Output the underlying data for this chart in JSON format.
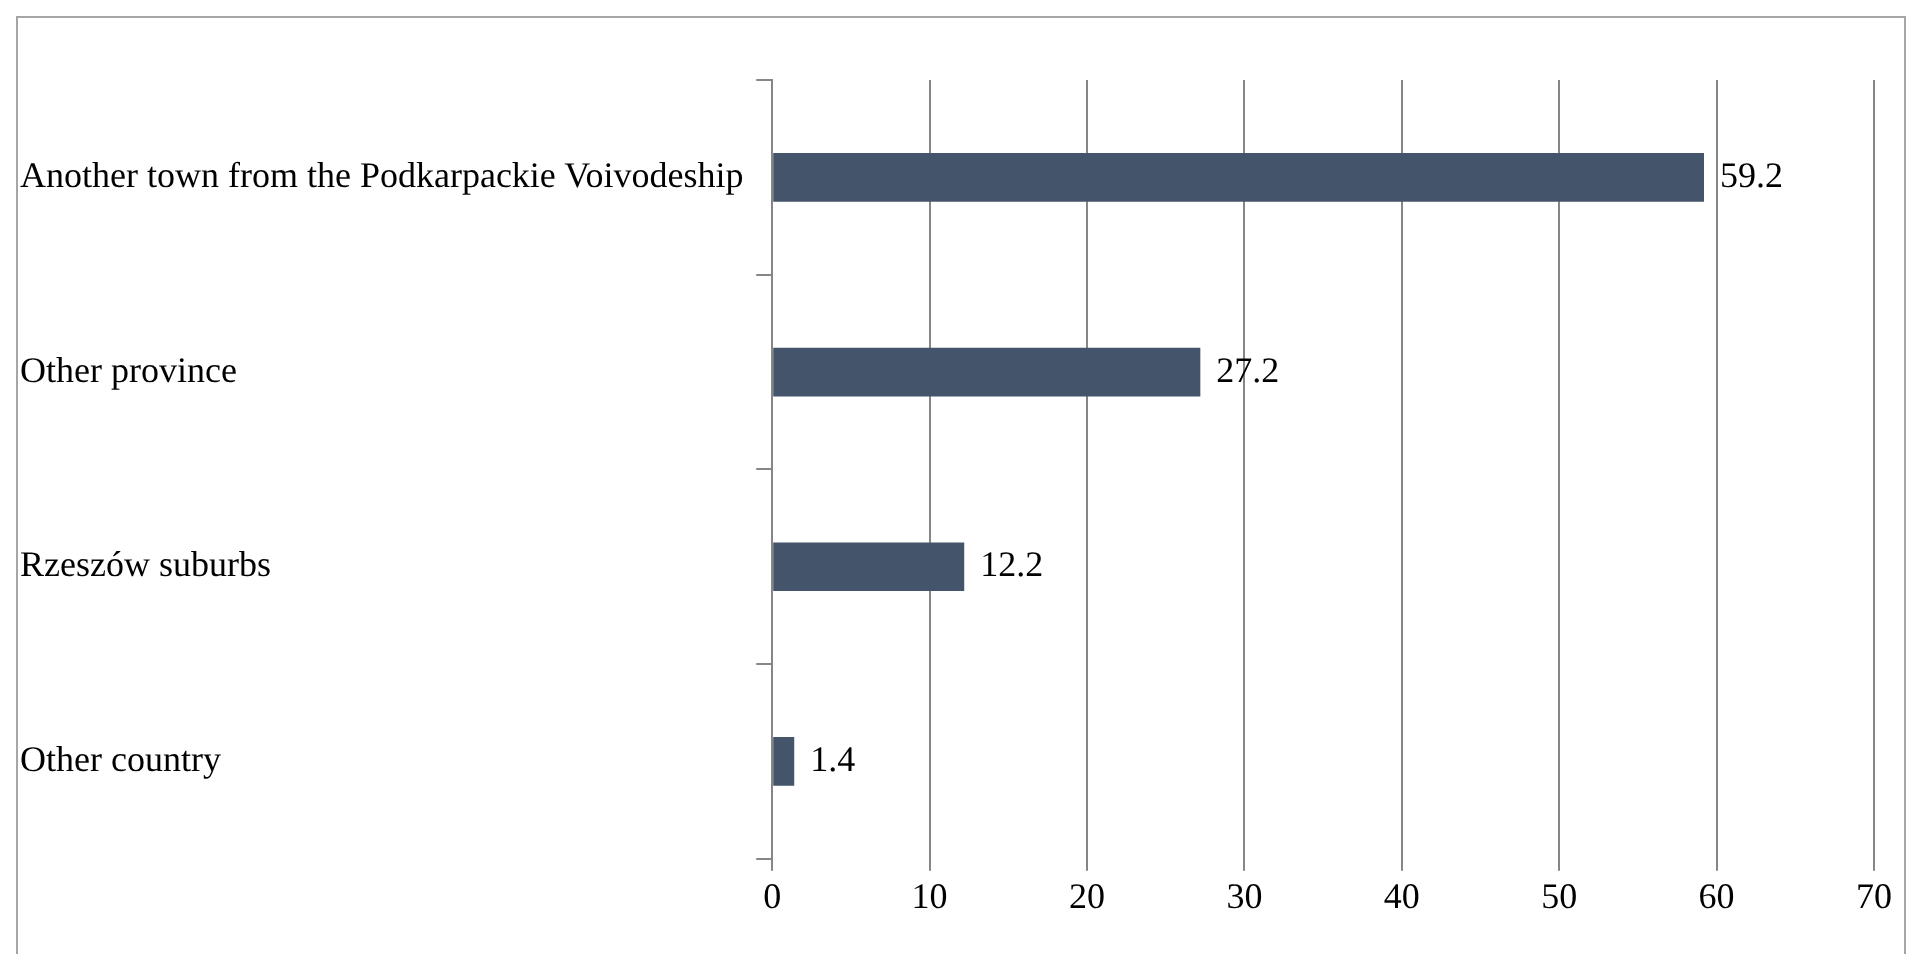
{
  "chart_data": {
    "type": "bar",
    "orientation": "horizontal",
    "categories": [
      "Another town from the Podkarpackie Voivodeship",
      "Other province",
      "Rzeszów suburbs",
      "Other country"
    ],
    "values": [
      59.2,
      27.2,
      12.2,
      1.4
    ],
    "color": "#44546a",
    "xlim": [
      0,
      70
    ],
    "xticks": [
      0,
      10,
      20,
      30,
      40,
      50,
      60,
      70
    ],
    "grid": "x",
    "data_labels": true
  }
}
